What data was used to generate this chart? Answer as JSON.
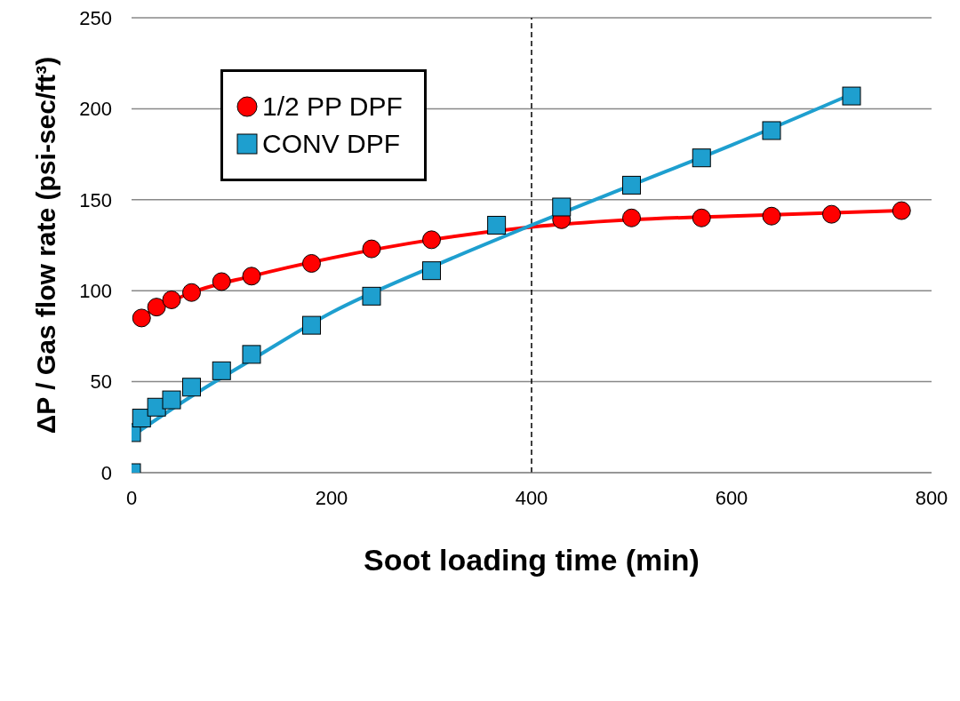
{
  "chart_data": {
    "type": "scatter",
    "xlabel": "Soot loading time (min)",
    "ylabel": "ΔP / Gas flow rate (psi-sec/ft³)",
    "xlim": [
      0,
      800
    ],
    "xticks": [
      0,
      200,
      400,
      600,
      800
    ],
    "ylim": [
      0,
      250
    ],
    "yticks": [
      0,
      50,
      100,
      150,
      200,
      250
    ],
    "grid": "y",
    "legend": "top left",
    "series": [
      {
        "name": "1/2 PP DPF",
        "marker": "circle",
        "color": "#ff0000",
        "x": [
          10,
          25,
          40,
          60,
          90,
          120,
          180,
          240,
          300,
          430,
          500,
          570,
          640,
          700,
          770
        ],
        "values": [
          85,
          91,
          95,
          99,
          105,
          108,
          115,
          123,
          128,
          139,
          140,
          140,
          141,
          142,
          144
        ]
      },
      {
        "name": "CONV DPF",
        "marker": "square",
        "color": "#1e9fcf",
        "x": [
          0,
          0,
          10,
          25,
          40,
          60,
          90,
          120,
          180,
          240,
          300,
          365,
          430,
          500,
          570,
          640,
          720
        ],
        "values": [
          0,
          22,
          30,
          36,
          40,
          47,
          56,
          65,
          81,
          97,
          111,
          136,
          146,
          158,
          173,
          188,
          207
        ]
      },
      {
        "type": "line",
        "marker": "none",
        "color": "#ff0000",
        "x": [
          10,
          60,
          120,
          200,
          300,
          400,
          500,
          600,
          770
        ],
        "values": [
          86,
          99,
          108,
          118,
          128,
          135,
          139,
          141,
          144
        ]
      },
      {
        "type": "line",
        "marker": "none",
        "color": "#1e9fcf",
        "x": [
          0,
          60,
          120,
          200,
          300,
          400,
          500,
          600,
          720
        ],
        "values": [
          20,
          42,
          62,
          88,
          113,
          136,
          158,
          180,
          208
        ]
      }
    ],
    "ref_lines": [
      {
        "axis": "x",
        "value": 400,
        "line_style": "dashed",
        "color": "#000000"
      }
    ]
  }
}
